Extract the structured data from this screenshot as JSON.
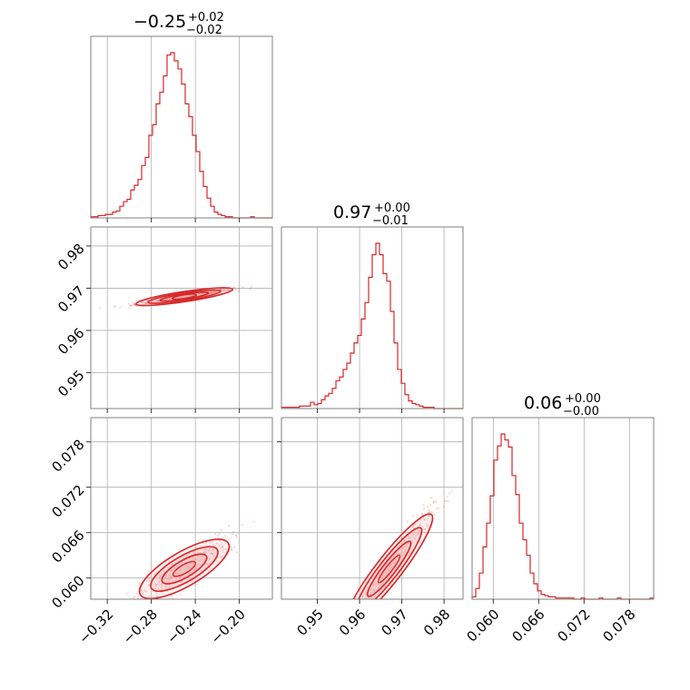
{
  "chart_data": {
    "type": "corner",
    "accent_color": "#d62728",
    "fill_color": "#f4b8b8",
    "params": [
      {
        "title_main": "−0.25",
        "title_plus": "+0.02",
        "title_minus": "−0.02",
        "range": [
          -0.335,
          -0.17
        ]
      },
      {
        "title_main": "0.97",
        "title_plus": "+0.00",
        "title_minus": "−0.01",
        "range": [
          0.9415,
          0.9845
        ]
      },
      {
        "title_main": "0.06",
        "title_plus": "+0.00",
        "title_minus": "−0.00",
        "range": [
          0.0572,
          0.0812
        ]
      }
    ],
    "ticks": [
      {
        "values": [
          -0.32,
          -0.28,
          -0.24,
          -0.2
        ],
        "labels": [
          "−0.32",
          "−0.28",
          "−0.24",
          "−0.20"
        ]
      },
      {
        "values": [
          0.95,
          0.96,
          0.97,
          0.98
        ],
        "labels": [
          "0.95",
          "0.96",
          "0.97",
          "0.98"
        ]
      },
      {
        "values": [
          0.06,
          0.066,
          0.072,
          0.078
        ],
        "labels": [
          "0.060",
          "0.066",
          "0.072",
          "0.078"
        ]
      }
    ],
    "hist": [
      {
        "edges": [
          -0.335,
          -0.17
        ],
        "counts": [
          1,
          1,
          2,
          2,
          3,
          3,
          5,
          6,
          10,
          14,
          16,
          24,
          28,
          33,
          45,
          52,
          71,
          80,
          98,
          108,
          122,
          140,
          142,
          135,
          128,
          115,
          98,
          87,
          71,
          57,
          40,
          27,
          17,
          10,
          5,
          3,
          2,
          1,
          1,
          0,
          0,
          0,
          0,
          0,
          1,
          0,
          0,
          0,
          0,
          0
        ]
      },
      {
        "edges": [
          0.9415,
          0.9845
        ],
        "counts": [
          1,
          1,
          1,
          1,
          1,
          2,
          2,
          2,
          5,
          3,
          4,
          7,
          10,
          12,
          16,
          22,
          25,
          31,
          36,
          44,
          52,
          58,
          71,
          84,
          104,
          122,
          131,
          122,
          107,
          101,
          77,
          52,
          31,
          20,
          11,
          6,
          4,
          3,
          2,
          1,
          1,
          1,
          0,
          0,
          0,
          0,
          0,
          0,
          0,
          0
        ]
      },
      {
        "edges": [
          0.0572,
          0.0812
        ],
        "counts": [
          2,
          9,
          22,
          44,
          64,
          87,
          117,
          129,
          139,
          134,
          128,
          104,
          88,
          64,
          50,
          37,
          22,
          13,
          7,
          4,
          3,
          2,
          2,
          1,
          1,
          1,
          1,
          1,
          0,
          0,
          1,
          0,
          0,
          0,
          0,
          1,
          0,
          0,
          0,
          0,
          1,
          0,
          0,
          0,
          0,
          0,
          0,
          0,
          0,
          1
        ]
      }
    ],
    "scatter_2d": [
      {
        "x_param": 0,
        "y_param": 1,
        "center": [
          -0.25,
          0.968
        ],
        "x_sigma": 0.022,
        "slope": 0.00087,
        "spread": 0.00028
      },
      {
        "x_param": 0,
        "y_param": 2,
        "center": [
          -0.25,
          0.0612
        ],
        "x_sigma": 0.02,
        "slope": 0.0017,
        "spread": 0.0011
      },
      {
        "x_param": 1,
        "y_param": 2,
        "center": [
          0.967,
          0.0612
        ],
        "x_sigma": 0.005,
        "slope": 0.0036,
        "spread": 0.0011
      }
    ]
  }
}
